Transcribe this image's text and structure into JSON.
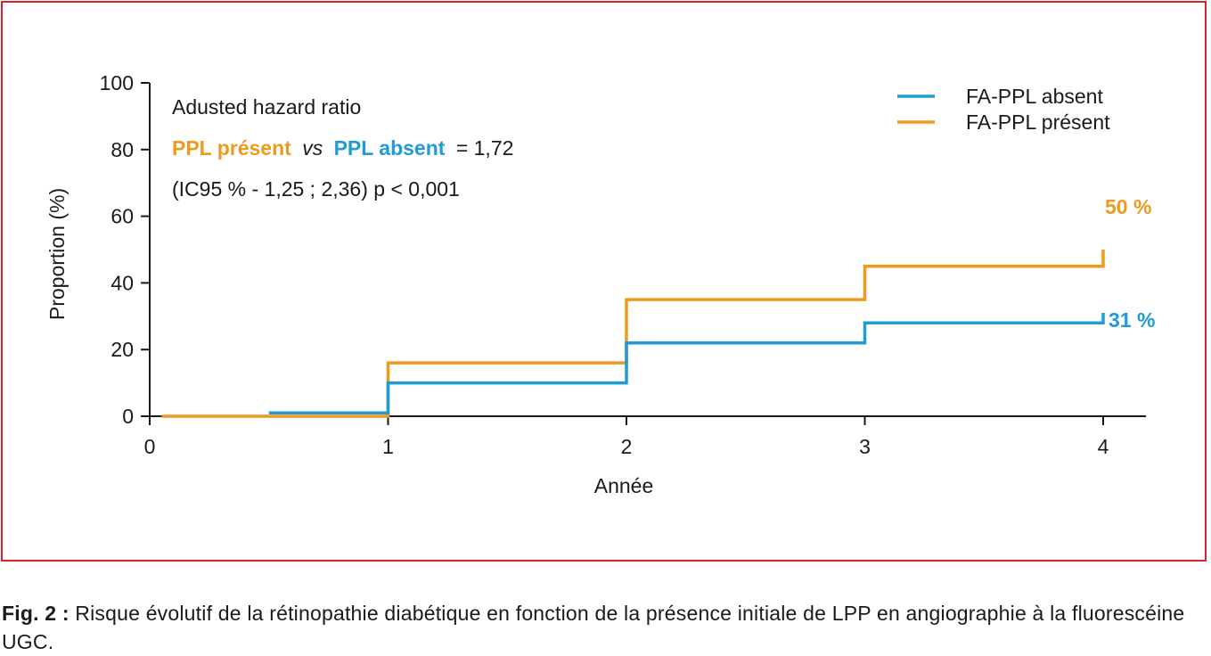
{
  "colors": {
    "frame": "#d8232a",
    "present": "#ee9a1e",
    "absent": "#1f9bd5",
    "axis": "#1a1a1a"
  },
  "chart_data": {
    "type": "line",
    "step": true,
    "xlabel": "Année",
    "ylabel": "Proportion (%)",
    "xlim": [
      0,
      4.2
    ],
    "ylim": [
      0,
      100
    ],
    "xticks": [
      0,
      1,
      2,
      3,
      4
    ],
    "yticks": [
      0,
      20,
      40,
      60,
      80,
      100
    ],
    "grid": false,
    "legend_position": "top-right",
    "series": [
      {
        "name": "FA-PPL absent",
        "color": "#1f9bd5",
        "x": [
          0.5,
          1,
          2,
          3,
          4
        ],
        "y": [
          1,
          10,
          22,
          28,
          31
        ],
        "end_label": "31 %"
      },
      {
        "name": "FA-PPL présent",
        "color": "#ee9a1e",
        "x": [
          0.05,
          1,
          2,
          3,
          4
        ],
        "y": [
          0,
          16,
          35,
          45,
          50
        ],
        "end_label": "50 %"
      }
    ],
    "annotation": {
      "line1": "Adusted hazard ratio",
      "line2_present": "PPL présent",
      "line2_vs": "vs",
      "line2_absent": "PPL absent",
      "line2_value": "= 1,72",
      "line3": "(IC95 % - 1,25 ; 2,36) p < 0,001"
    }
  },
  "caption": {
    "label": "Fig. 2 :",
    "text": " Risque évolutif de la rétinopathie diabétique en fonction de la présence initiale de LPP en angiographie à la fluorescéine UGC."
  }
}
